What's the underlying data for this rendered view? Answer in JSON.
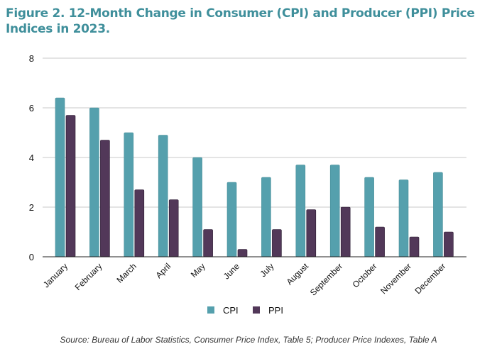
{
  "chart_data": {
    "type": "bar",
    "title": "Figure 2. 12-Month Change in Consumer (CPI) and Producer (PPI) Price Indices in 2023.",
    "categories": [
      "January",
      "February",
      "March",
      "April",
      "May",
      "June",
      "July",
      "August",
      "September",
      "October",
      "November",
      "December"
    ],
    "series": [
      {
        "name": "CPI",
        "color": "#55a0ad",
        "values": [
          6.4,
          6.0,
          5.0,
          4.9,
          4.0,
          3.0,
          3.2,
          3.7,
          3.7,
          3.2,
          3.1,
          3.4
        ]
      },
      {
        "name": "PPI",
        "color": "#523859",
        "values": [
          5.7,
          4.7,
          2.7,
          2.3,
          1.1,
          0.3,
          1.1,
          1.9,
          2.0,
          1.2,
          0.8,
          1.0
        ]
      }
    ],
    "ylim": [
      0,
      8
    ],
    "yticks": [
      "0",
      "2",
      "4",
      "6",
      "8"
    ],
    "grid": true,
    "legend": "bottom-center",
    "xlabel": "",
    "ylabel": "",
    "source": "Source: Bureau of Labor Statistics, Consumer Price Index, Table 5; Producer Price Indexes, Table A"
  }
}
